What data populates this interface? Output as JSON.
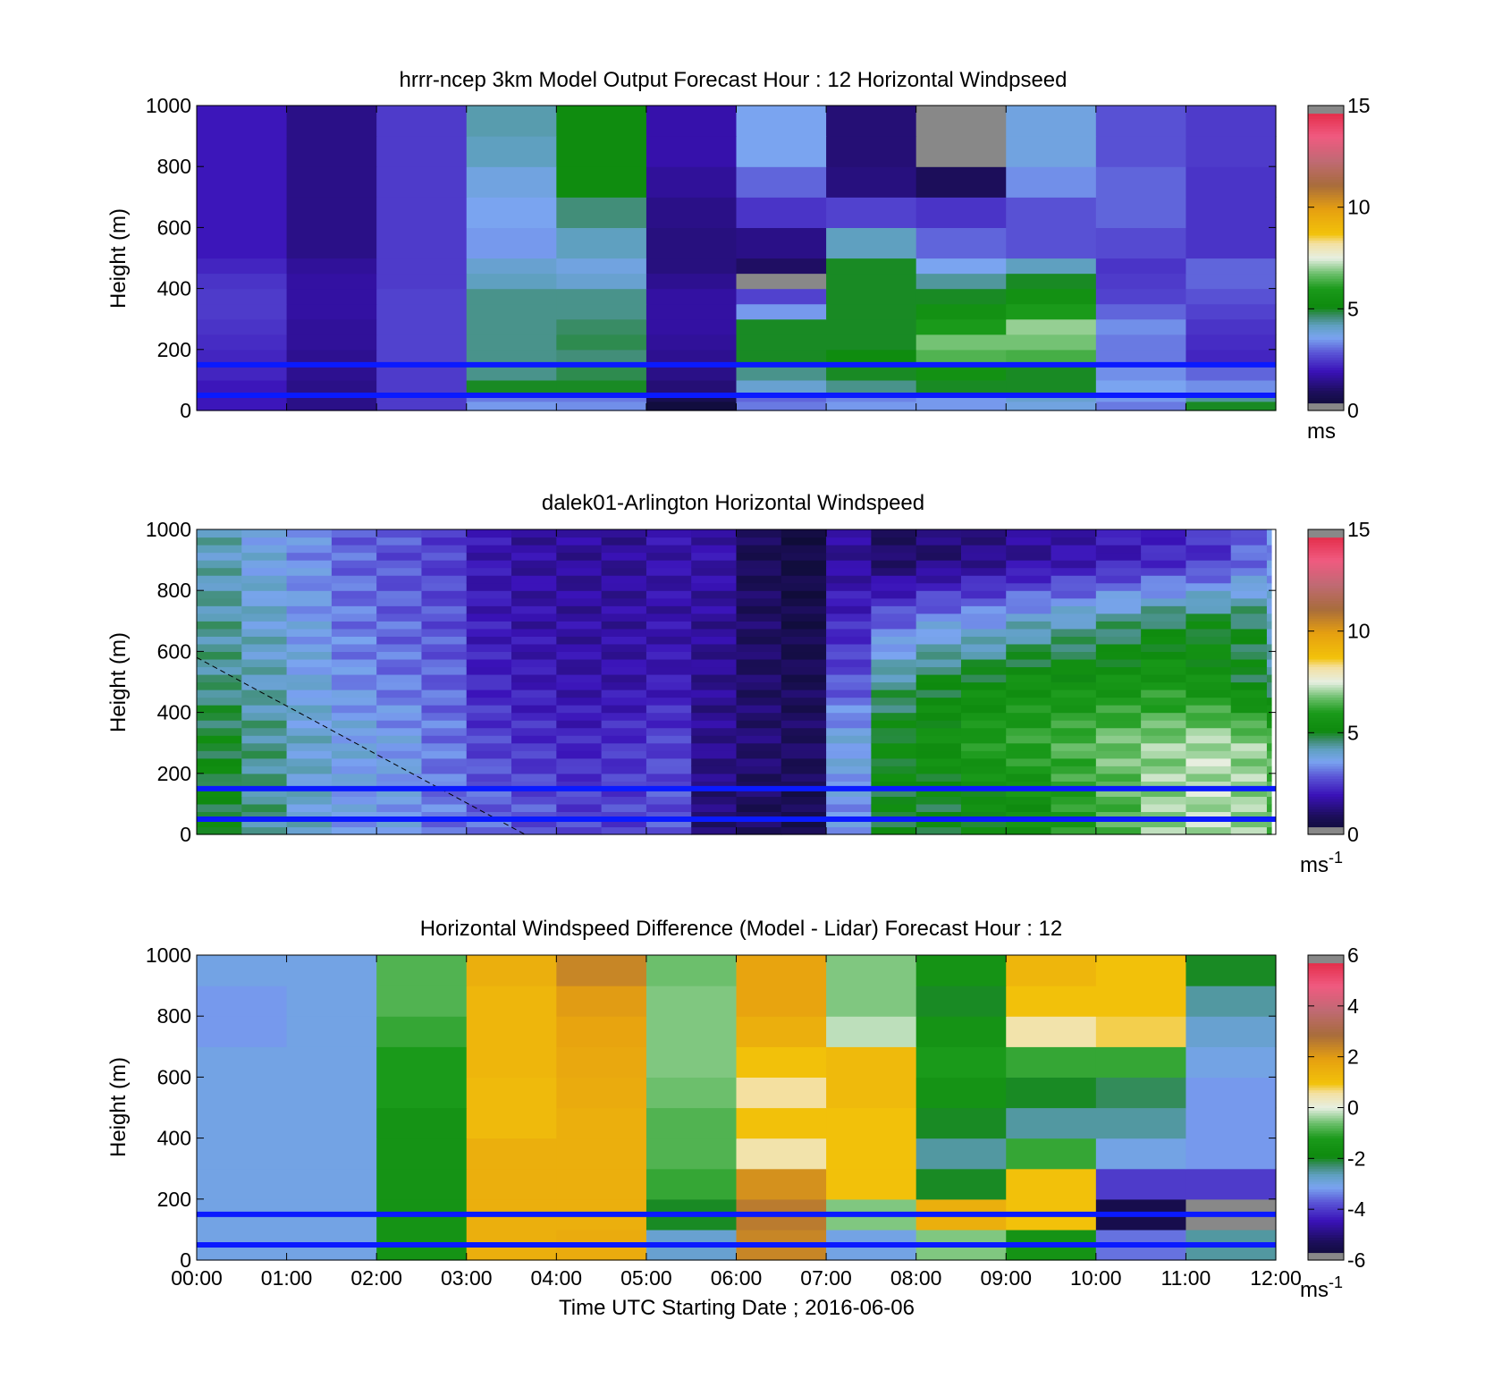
{
  "figure": {
    "xlabel": "Time UTC  Starting Date ; 2016-06-06",
    "x_ticks": [
      "00:00",
      "01:00",
      "02:00",
      "03:00",
      "04:00",
      "05:00",
      "06:00",
      "07:00",
      "08:00",
      "09:00",
      "10:00",
      "11:00",
      "12:00"
    ]
  },
  "chart_data": [
    {
      "type": "heatmap",
      "title": "hrrr-ncep 3km Model Output   Forecast Hour : 12 Horizontal Windpseed",
      "ylabel": "Height (m)",
      "x_range_hours": [
        0,
        12
      ],
      "ylim": [
        0,
        1000
      ],
      "y_ticks": [
        0,
        200,
        400,
        600,
        800,
        1000
      ],
      "colorbar": {
        "range": [
          0,
          15
        ],
        "ticks": [
          0,
          5,
          10,
          15
        ],
        "unit_label": "ms",
        "unit_superscript": ""
      },
      "reference_lines_m": [
        50,
        150
      ],
      "column_hours": [
        0,
        1,
        2,
        3,
        4,
        5,
        6,
        7,
        8,
        9,
        10,
        11
      ],
      "level_tops_m": [
        30,
        60,
        100,
        150,
        200,
        250,
        300,
        350,
        400,
        450,
        500,
        600,
        700,
        800,
        900,
        1000
      ],
      "values": [
        [
          2.0,
          1.4,
          2.5,
          3.5,
          3.4,
          0.3,
          3.2,
          3.5,
          3.5,
          3.8,
          3.2,
          5.0
        ],
        [
          2.0,
          1.4,
          2.5,
          3.2,
          3.2,
          0.7,
          3.0,
          3.3,
          3.5,
          4.0,
          3.5,
          4.4
        ],
        [
          2.0,
          1.4,
          2.5,
          5.0,
          5.0,
          1.2,
          4.0,
          4.5,
          5.0,
          5.0,
          3.6,
          3.4
        ],
        [
          2.2,
          1.5,
          2.5,
          4.5,
          4.8,
          1.4,
          4.5,
          5.0,
          5.5,
          5.0,
          3.4,
          3.0
        ],
        [
          2.2,
          1.5,
          2.6,
          4.5,
          4.6,
          1.5,
          5.0,
          5.2,
          6.5,
          6.4,
          3.2,
          2.2
        ],
        [
          2.3,
          1.6,
          2.6,
          4.5,
          4.8,
          1.6,
          5.0,
          5.0,
          6.8,
          6.8,
          3.2,
          2.3
        ],
        [
          2.4,
          1.6,
          2.6,
          4.5,
          4.7,
          1.7,
          5.0,
          5.0,
          6.0,
          7.0,
          3.4,
          2.4
        ],
        [
          2.5,
          1.7,
          2.6,
          4.5,
          4.5,
          1.7,
          3.5,
          5.0,
          5.5,
          6.0,
          3.0,
          2.6
        ],
        [
          2.5,
          1.7,
          2.6,
          4.5,
          4.5,
          1.7,
          2.6,
          5.0,
          5.0,
          5.5,
          2.6,
          2.8
        ],
        [
          2.4,
          1.7,
          2.5,
          4.2,
          4.0,
          1.5,
          -1,
          5.0,
          4.4,
          5.0,
          2.5,
          3.0
        ],
        [
          2.2,
          1.6,
          2.5,
          4.0,
          3.8,
          1.3,
          1.0,
          5.0,
          3.6,
          4.2,
          2.4,
          3.0
        ],
        [
          2.0,
          1.4,
          2.5,
          3.5,
          4.2,
          1.3,
          1.4,
          4.2,
          3.0,
          2.8,
          2.7,
          2.4
        ],
        [
          2.0,
          1.4,
          2.5,
          3.6,
          4.6,
          1.4,
          2.4,
          2.6,
          2.4,
          2.8,
          3.0,
          2.4
        ],
        [
          2.0,
          1.4,
          2.5,
          3.8,
          5.2,
          1.6,
          3.0,
          1.3,
          0.9,
          3.4,
          3.0,
          2.4
        ],
        [
          2.0,
          1.4,
          2.5,
          4.2,
          5.2,
          1.8,
          3.6,
          1.2,
          -1,
          3.8,
          2.8,
          2.5
        ],
        [
          2.0,
          1.4,
          2.5,
          4.3,
          5.2,
          1.8,
          3.6,
          1.2,
          -1,
          3.8,
          2.8,
          2.5
        ]
      ]
    },
    {
      "type": "heatmap",
      "title": "dalek01-Arlington  Horizontal Windspeed",
      "ylabel": "Height (m)",
      "x_range_hours": [
        0,
        12
      ],
      "ylim": [
        0,
        1000
      ],
      "y_ticks": [
        0,
        200,
        400,
        600,
        800,
        1000
      ],
      "colorbar": {
        "range": [
          0,
          15
        ],
        "ticks": [
          0,
          5,
          10,
          15
        ],
        "unit_label": "ms",
        "unit_superscript": "-1"
      },
      "reference_lines_m": [
        50,
        150
      ],
      "dashed_line": {
        "from": {
          "hour": 0.0,
          "height_m": 580
        },
        "to": {
          "hour": 3.65,
          "height_m": 0
        }
      },
      "profile_hours": [
        0.0,
        0.5,
        1.0,
        1.5,
        2.0,
        2.5,
        3.0,
        3.5,
        4.0,
        4.5,
        5.0,
        5.5,
        6.0,
        6.5,
        7.0,
        7.5,
        8.0,
        8.5,
        9.0,
        9.5,
        10.0,
        10.5,
        11.0,
        11.5,
        11.9
      ],
      "profile_heights_m": [
        100,
        300,
        500,
        700,
        900
      ],
      "values": [
        [
          5.0,
          4.5,
          4.0,
          3.6,
          3.6,
          3.2,
          3.0,
          2.8,
          2.6,
          2.6,
          2.8,
          1.2,
          0.9,
          0.7,
          3.5,
          5.0,
          5.0,
          5.2,
          5.5,
          6.0,
          6.5,
          7.0,
          7.2,
          7.0,
          6.5
        ],
        [
          5.0,
          4.5,
          4.0,
          3.8,
          3.6,
          3.2,
          2.6,
          2.4,
          2.2,
          2.4,
          2.6,
          1.5,
          1.2,
          1.0,
          3.8,
          5.2,
          5.5,
          6.0,
          6.2,
          6.5,
          6.8,
          7.0,
          7.2,
          7.0,
          6.5
        ],
        [
          4.5,
          4.2,
          3.8,
          3.4,
          3.2,
          3.0,
          2.2,
          2.0,
          1.8,
          1.8,
          2.0,
          1.5,
          1.0,
          0.8,
          2.8,
          4.5,
          5.0,
          5.2,
          5.5,
          5.5,
          5.6,
          5.8,
          5.5,
          5.0,
          4.5
        ],
        [
          4.4,
          4.0,
          3.6,
          3.2,
          3.0,
          2.8,
          2.0,
          1.8,
          1.7,
          1.7,
          1.8,
          1.6,
          1.0,
          0.6,
          2.2,
          3.0,
          3.5,
          3.6,
          4.0,
          4.2,
          4.5,
          4.8,
          5.0,
          4.8,
          4.0
        ],
        [
          4.2,
          3.8,
          3.4,
          3.0,
          2.8,
          2.6,
          1.9,
          1.7,
          1.6,
          1.6,
          1.8,
          1.8,
          0.8,
          0.5,
          1.6,
          1.0,
          1.2,
          1.4,
          1.6,
          1.8,
          2.0,
          2.2,
          2.4,
          3.0,
          3.4
        ]
      ]
    },
    {
      "type": "heatmap",
      "title": "Horizontal Windspeed Difference (Model - Lidar) Forecast Hour : 12",
      "ylabel": "Height (m)",
      "x_range_hours": [
        0,
        12
      ],
      "ylim": [
        0,
        1000
      ],
      "y_ticks": [
        0,
        200,
        400,
        600,
        800,
        1000
      ],
      "colorbar": {
        "range": [
          -6,
          6
        ],
        "ticks": [
          -6,
          -4,
          -2,
          0,
          2,
          4,
          6
        ],
        "unit_label": "ms",
        "unit_superscript": "-1"
      },
      "reference_lines_m": [
        50,
        150
      ],
      "column_hours": [
        0,
        1,
        2,
        3,
        4,
        5,
        6,
        7,
        8,
        9,
        10,
        11
      ],
      "level_tops_m": [
        100,
        200,
        300,
        400,
        500,
        600,
        700,
        800,
        900,
        1000
      ],
      "values": [
        [
          -3.0,
          -3.0,
          -1.5,
          1.5,
          1.6,
          -2.8,
          2.4,
          -3.0,
          -0.5,
          -1.5,
          -3.5,
          -2.5
        ],
        [
          -3.0,
          -3.0,
          -1.5,
          1.5,
          1.5,
          -2.0,
          2.6,
          -0.5,
          1.5,
          1.0,
          -5.5,
          -6.5
        ],
        [
          -3.0,
          -3.0,
          -1.5,
          1.5,
          1.5,
          -1.0,
          2.2,
          1.0,
          -2.0,
          1.0,
          -4.0,
          -4.0
        ],
        [
          -3.0,
          -3.0,
          -1.5,
          1.5,
          1.5,
          -0.8,
          0.5,
          1.0,
          -2.5,
          -1.0,
          -3.0,
          -3.2
        ],
        [
          -3.0,
          -3.0,
          -1.5,
          1.2,
          1.5,
          -0.8,
          1.0,
          1.0,
          -2.0,
          -2.5,
          -2.5,
          -3.2
        ],
        [
          -3.0,
          -3.0,
          -1.2,
          1.2,
          1.6,
          -0.6,
          0.6,
          1.2,
          -1.5,
          -2.0,
          -2.2,
          -3.2
        ],
        [
          -3.0,
          -3.0,
          -1.2,
          1.3,
          1.7,
          -0.5,
          1.0,
          1.2,
          -1.2,
          -1.0,
          -1.0,
          -3.0
        ],
        [
          -3.2,
          -3.0,
          -1.0,
          1.3,
          1.8,
          -0.5,
          1.5,
          -0.2,
          -1.5,
          0.5,
          0.8,
          -2.8
        ],
        [
          -3.2,
          -3.0,
          -0.8,
          1.3,
          2.0,
          -0.5,
          1.8,
          -0.5,
          -2.0,
          1.0,
          1.0,
          -2.5
        ],
        [
          -3.0,
          -3.0,
          -0.8,
          1.5,
          2.4,
          -0.6,
          1.8,
          -0.5,
          -1.5,
          1.3,
          1.0,
          -2.0
        ]
      ]
    }
  ]
}
